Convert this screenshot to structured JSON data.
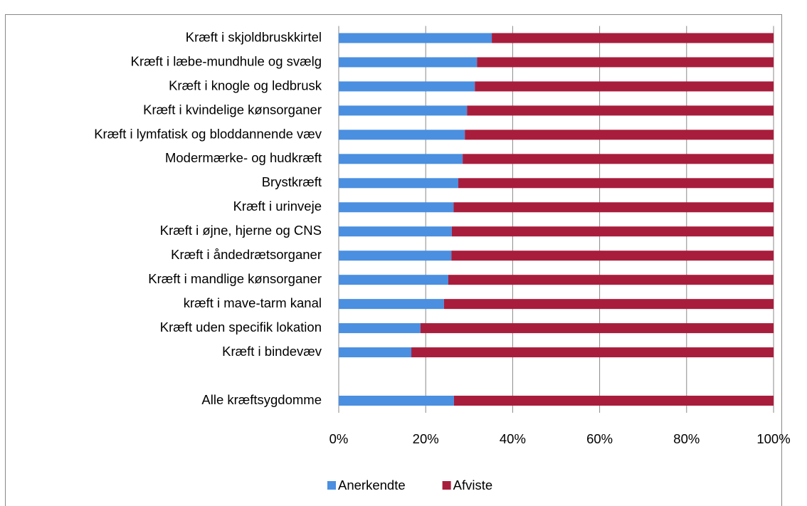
{
  "chart_data": {
    "type": "stacked_barh",
    "categories": [
      "Kræft i skjoldbruskkirtel",
      "Kræft i læbe-mundhule og svælg",
      "Kræft i knogle og ledbrusk",
      "Kræft i kvindelige kønsorganer",
      "Kræft i lymfatisk og bloddannende væv",
      "Modermærke- og hudkræft",
      "Brystkræft",
      "Kræft i urinveje",
      "Kræft i øjne, hjerne og CNS",
      "Kræft i åndedrætsorganer",
      "Kræft i mandlige kønsorganer",
      "kræft i mave-tarm kanal",
      "Kræft uden specifik lokation",
      "Kræft i bindevæv",
      null,
      "Alle kræftsygdomme"
    ],
    "series": [
      {
        "name": "Anerkendte",
        "color": "#4a8fe0",
        "values": [
          35.2,
          31.8,
          31.3,
          29.5,
          29.0,
          28.5,
          27.5,
          26.4,
          26.0,
          25.9,
          25.2,
          24.2,
          18.8,
          16.7,
          null,
          26.5
        ]
      },
      {
        "name": "Afviste",
        "color": "#a91d3c",
        "values": [
          64.8,
          68.2,
          68.7,
          70.5,
          71.0,
          71.5,
          72.5,
          73.6,
          74.0,
          74.1,
          74.8,
          75.8,
          81.2,
          83.3,
          null,
          73.5
        ]
      }
    ],
    "xlim": [
      0,
      100
    ],
    "xticks": [
      {
        "value": 0,
        "label": "0%"
      },
      {
        "value": 20,
        "label": "20%"
      },
      {
        "value": 40,
        "label": "40%"
      },
      {
        "value": 60,
        "label": "60%"
      },
      {
        "value": 80,
        "label": "80%"
      },
      {
        "value": 100,
        "label": "100%"
      }
    ],
    "grid": true,
    "legend": "bottom"
  }
}
